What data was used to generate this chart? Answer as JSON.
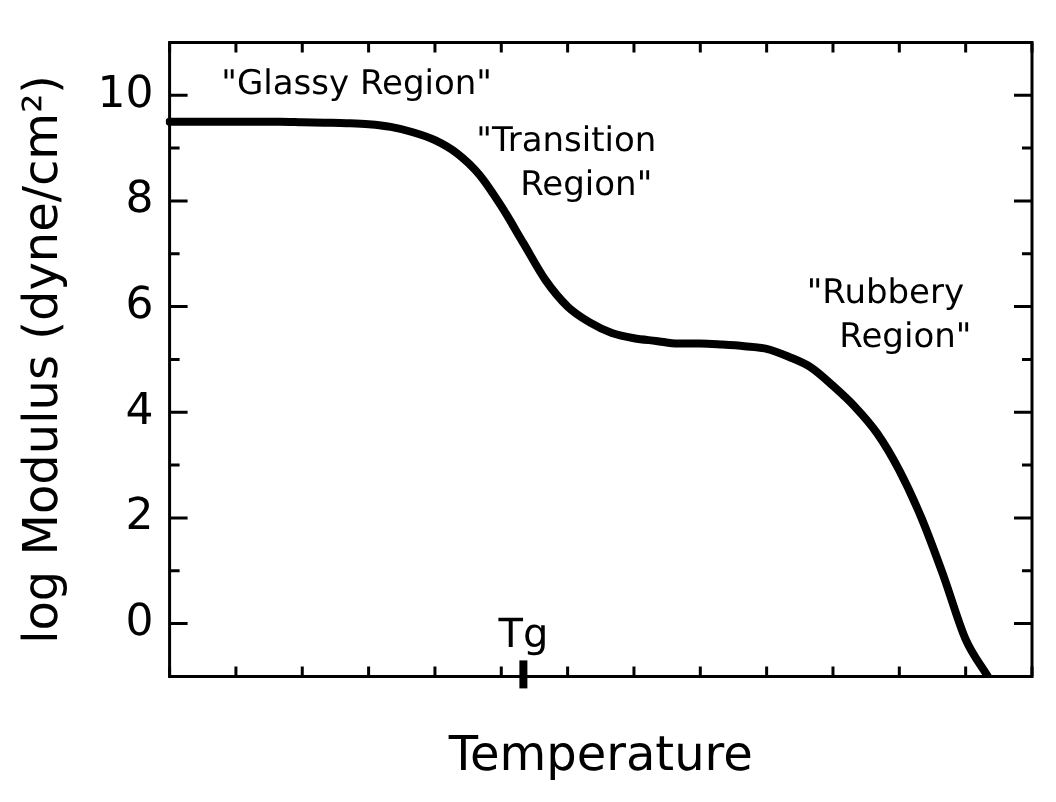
{
  "chart_data": {
    "type": "line",
    "xlabel": "Temperature",
    "ylabel": "log Modulus (dyne/cm²)",
    "categories": [
      null,
      null,
      null,
      null,
      null,
      null,
      null,
      null,
      null,
      null,
      null,
      null,
      null,
      null,
      null,
      null,
      null,
      null,
      null,
      null,
      null,
      null,
      null,
      null,
      null,
      null,
      null,
      null,
      null,
      null,
      null,
      null,
      null,
      null,
      null,
      null,
      null,
      null,
      null,
      null
    ],
    "series": [
      {
        "color": "#000000",
        "values": [
          9.5,
          9.5,
          9.5,
          9.5,
          9.5,
          9.5,
          9.49,
          9.48,
          9.47,
          9.45,
          9.4,
          9.3,
          9.15,
          8.9,
          8.5,
          7.9,
          7.2,
          6.5,
          6.0,
          5.7,
          5.5,
          5.4,
          5.35,
          5.3,
          5.3,
          5.28,
          5.25,
          5.2,
          5.05,
          4.85,
          4.5,
          4.1,
          3.6,
          2.9,
          2.0,
          0.9,
          -0.3,
          -1,
          null,
          null
        ]
      }
    ],
    "ylim": [
      -1,
      11
    ],
    "yticks": [
      {
        "value": -1,
        "label": null
      },
      0,
      {
        "value": 1,
        "label": null
      },
      2,
      {
        "value": 3,
        "label": null
      },
      4,
      {
        "value": 5,
        "label": null
      },
      6,
      {
        "value": 7,
        "label": null
      },
      8,
      {
        "value": 9,
        "label": null
      },
      10,
      {
        "value": 11,
        "label": null
      }
    ],
    "tick_labels": "y",
    "grid": false,
    "legend": false,
    "marker": "none",
    "line_style": "solid",
    "annotations": [
      "\"Glassy Region\"",
      "\"Transition\nRegion\"",
      "\"Rubbery\nRegion\"",
      "Tg"
    ]
  }
}
